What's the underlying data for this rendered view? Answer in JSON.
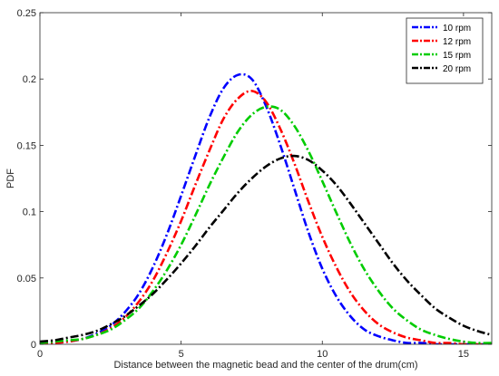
{
  "chart_data": {
    "type": "line",
    "title": "",
    "xlabel": "Distance between the magnetic bead and the center of the drum(cm)",
    "ylabel": "PDF",
    "xlim": [
      0,
      16
    ],
    "ylim": [
      0,
      0.25
    ],
    "xticks": [
      0,
      5,
      10,
      15
    ],
    "yticks": [
      0,
      0.05,
      0.1,
      0.15,
      0.2,
      0.25
    ],
    "xtick_labels": [
      "0",
      "5",
      "10",
      "15"
    ],
    "ytick_labels": [
      "0",
      "0.05",
      "0.1",
      "0.15",
      "0.2",
      "0.25"
    ],
    "grid": false,
    "legend_position": "top-right",
    "line_style": "dash-dot",
    "x": [
      0,
      0.5,
      1,
      1.5,
      2,
      2.5,
      3,
      3.5,
      4,
      4.5,
      5,
      5.5,
      6,
      6.5,
      7,
      7.5,
      8,
      8.5,
      9,
      9.5,
      10,
      10.5,
      11,
      11.5,
      12,
      12.5,
      13,
      13.5,
      14,
      14.5,
      15,
      15.5,
      16
    ],
    "series": [
      {
        "name": "10 rpm",
        "color": "#0000ff",
        "values": [
          0.001,
          0.001,
          0.002,
          0.004,
          0.008,
          0.014,
          0.024,
          0.038,
          0.058,
          0.083,
          0.112,
          0.142,
          0.171,
          0.193,
          0.203,
          0.2,
          0.18,
          0.151,
          0.118,
          0.085,
          0.057,
          0.036,
          0.021,
          0.011,
          0.006,
          0.003,
          0.001,
          0.001,
          0,
          0,
          0,
          0,
          0
        ]
      },
      {
        "name": "12 rpm",
        "color": "#ff0000",
        "values": [
          0.001,
          0.001,
          0.002,
          0.004,
          0.007,
          0.012,
          0.02,
          0.032,
          0.048,
          0.069,
          0.093,
          0.12,
          0.146,
          0.17,
          0.185,
          0.191,
          0.183,
          0.163,
          0.137,
          0.108,
          0.081,
          0.058,
          0.039,
          0.025,
          0.015,
          0.009,
          0.005,
          0.003,
          0.001,
          0.001,
          0,
          0,
          0
        ]
      },
      {
        "name": "15 rpm",
        "color": "#00cc00",
        "values": [
          0.001,
          0.002,
          0.003,
          0.004,
          0.007,
          0.011,
          0.018,
          0.027,
          0.04,
          0.056,
          0.075,
          0.097,
          0.12,
          0.141,
          0.16,
          0.173,
          0.179,
          0.177,
          0.165,
          0.146,
          0.123,
          0.099,
          0.076,
          0.056,
          0.04,
          0.027,
          0.018,
          0.011,
          0.007,
          0.004,
          0.002,
          0.001,
          0.001
        ]
      },
      {
        "name": "20 rpm",
        "color": "#000000",
        "values": [
          0.002,
          0.003,
          0.005,
          0.007,
          0.01,
          0.015,
          0.021,
          0.029,
          0.038,
          0.049,
          0.061,
          0.074,
          0.088,
          0.101,
          0.114,
          0.125,
          0.134,
          0.14,
          0.142,
          0.139,
          0.131,
          0.12,
          0.106,
          0.091,
          0.076,
          0.061,
          0.048,
          0.037,
          0.027,
          0.02,
          0.014,
          0.01,
          0.007
        ]
      }
    ]
  }
}
